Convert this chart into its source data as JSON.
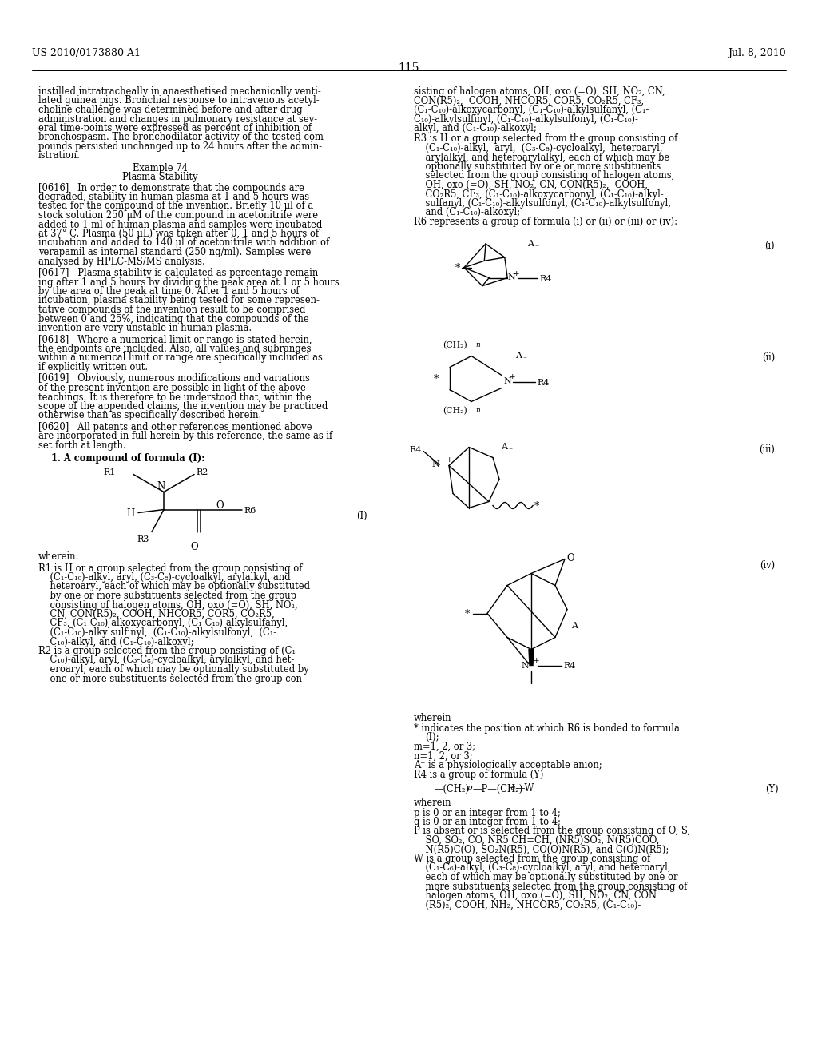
{
  "page_number": "115",
  "header_left": "US 2010/0173880 A1",
  "header_right": "Jul. 8, 2010",
  "background_color": "#ffffff",
  "text_color": "#000000"
}
